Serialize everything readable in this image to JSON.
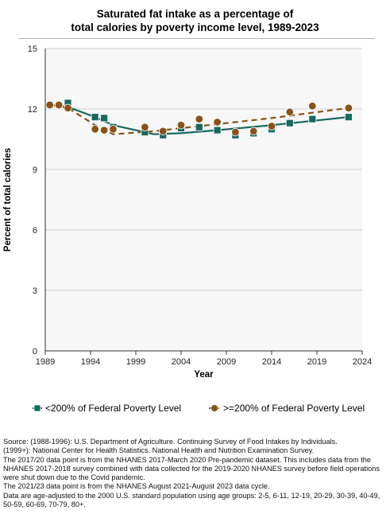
{
  "title_line1": "Saturated fat intake as a percentage of",
  "title_line2": "total calories by poverty income level, 1989-2023",
  "colors": {
    "low": "#17695f",
    "high": "#8a5218",
    "plot_bg": "#f7f7f7",
    "grid": "#d0d0d0"
  },
  "legend": {
    "low_label": "<200% of Federal Poverty Level",
    "high_label": ">=200% of Federal Poverty Level",
    "low_icon": "square-marker-icon",
    "high_icon": "circle-marker-icon"
  },
  "source_lines": [
    "Source: (1988-1996): U.S. Department of Agriculture. Continuing Survey of Food Intakes by Individuals.",
    "(1999+): National Center for Health Statistics. National Health and Nutrition Examination Survey.",
    "The 2017/20 data point is from the NHANES 2017-March 2020 Pre-pandemic dataset. This includes data from the NHANES 2017-2018 survey combined with data collected for the 2019-2020 NHANES survey before field operations were shut down due to the Covid pandemic.",
    "The 2021/23 data point is from the NHANES August 2021-August 2023 data cycle.",
    "Data are age-adjusted to the 2000 U.S. standard population using age groups: 2-5, 6-11, 12-19, 20-29, 30-39, 40-49, 50-59, 60-69, 70-79, 80+."
  ],
  "chart_data": {
    "type": "scatter",
    "title": "Saturated fat intake as a percentage of total calories by poverty income level, 1989-2023",
    "xlabel": "Year",
    "ylabel": "Percent of total calories",
    "xlim": [
      1989,
      2024
    ],
    "ylim": [
      0,
      15
    ],
    "xticks": [
      1989,
      1994,
      1999,
      2004,
      2009,
      2014,
      2019,
      2024
    ],
    "yticks": [
      0,
      3,
      6,
      9,
      12,
      15
    ],
    "grid": "horizontal",
    "legend_position": "bottom",
    "series": [
      {
        "name": "<200% of Federal Poverty Level",
        "marker": "square",
        "points": [
          {
            "x": 1989.5,
            "y": 12.2
          },
          {
            "x": 1990.5,
            "y": 12.2
          },
          {
            "x": 1991.5,
            "y": 12.3
          },
          {
            "x": 1994.5,
            "y": 11.6
          },
          {
            "x": 1995.5,
            "y": 11.55
          },
          {
            "x": 1996.5,
            "y": 11.1
          },
          {
            "x": 2000,
            "y": 10.85
          },
          {
            "x": 2002,
            "y": 10.7
          },
          {
            "x": 2004,
            "y": 11.05
          },
          {
            "x": 2006,
            "y": 11.1
          },
          {
            "x": 2008,
            "y": 10.95
          },
          {
            "x": 2010,
            "y": 10.7
          },
          {
            "x": 2012,
            "y": 10.8
          },
          {
            "x": 2014,
            "y": 11.0
          },
          {
            "x": 2016,
            "y": 11.3
          },
          {
            "x": 2018.5,
            "y": 11.5
          },
          {
            "x": 2022.5,
            "y": 11.6
          }
        ],
        "trend": [
          {
            "x": 1989.5,
            "y": 12.2
          },
          {
            "x": 1991.5,
            "y": 12.1
          },
          {
            "x": 1994.5,
            "y": 11.6
          },
          {
            "x": 1996.5,
            "y": 11.2
          },
          {
            "x": 2001,
            "y": 10.75
          },
          {
            "x": 2004,
            "y": 10.8
          },
          {
            "x": 2008,
            "y": 10.95
          },
          {
            "x": 2014,
            "y": 11.2
          },
          {
            "x": 2022.5,
            "y": 11.6
          }
        ]
      },
      {
        "name": ">=200% of Federal Poverty Level",
        "marker": "circle",
        "points": [
          {
            "x": 1989.5,
            "y": 12.2
          },
          {
            "x": 1990.5,
            "y": 12.2
          },
          {
            "x": 1991.5,
            "y": 12.05
          },
          {
            "x": 1994.5,
            "y": 11.0
          },
          {
            "x": 1995.5,
            "y": 10.95
          },
          {
            "x": 1996.5,
            "y": 11.0
          },
          {
            "x": 2000,
            "y": 11.1
          },
          {
            "x": 2002,
            "y": 10.9
          },
          {
            "x": 2004,
            "y": 11.2
          },
          {
            "x": 2006,
            "y": 11.5
          },
          {
            "x": 2008,
            "y": 11.35
          },
          {
            "x": 2010,
            "y": 10.85
          },
          {
            "x": 2012,
            "y": 10.9
          },
          {
            "x": 2014,
            "y": 11.15
          },
          {
            "x": 2016,
            "y": 11.85
          },
          {
            "x": 2018.5,
            "y": 12.15
          },
          {
            "x": 2022.5,
            "y": 12.05
          }
        ],
        "trend": [
          {
            "x": 1989.5,
            "y": 12.2
          },
          {
            "x": 1991.5,
            "y": 12.05
          },
          {
            "x": 1994.5,
            "y": 11.2
          },
          {
            "x": 1996.5,
            "y": 10.75
          },
          {
            "x": 2001,
            "y": 10.9
          },
          {
            "x": 2004,
            "y": 11.05
          },
          {
            "x": 2008,
            "y": 11.25
          },
          {
            "x": 2014,
            "y": 11.55
          },
          {
            "x": 2022.5,
            "y": 12.05
          }
        ]
      }
    ]
  }
}
